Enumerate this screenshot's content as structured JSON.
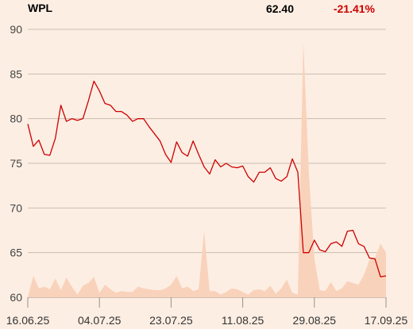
{
  "header": {
    "ticker": "WPL",
    "price": "62.40",
    "change": "-21.41%"
  },
  "colors": {
    "price_line": "#cc0000",
    "volume_fill": "#f9d2bb",
    "grid": "#c9bdb0",
    "background": "#fdeee3"
  },
  "chart_data": {
    "type": "line",
    "title": "",
    "xlabel": "",
    "ylabel": "",
    "ylim": [
      60,
      90
    ],
    "yticks": [
      "90",
      "85",
      "80",
      "75",
      "70",
      "65",
      "60"
    ],
    "ytick_values": [
      90,
      85,
      80,
      75,
      70,
      65,
      60
    ],
    "xticks": [
      "16.06.25",
      "04.07.25",
      "23.07.25",
      "11.08.25",
      "29.08.25",
      "17.09.25"
    ],
    "grid": true,
    "series": [
      {
        "values": [
          79.4,
          76.9,
          77.6,
          76.0,
          75.9,
          77.8,
          81.5,
          79.7,
          80.0,
          79.8,
          80.0,
          82.0,
          84.2,
          83.1,
          81.7,
          81.5,
          80.8,
          80.8,
          80.4,
          79.7,
          80.0,
          80.0,
          79.1,
          78.3,
          77.5,
          76.0,
          75.1,
          77.4,
          76.2,
          75.8,
          77.5,
          76.0,
          74.6,
          73.8,
          75.4,
          74.6,
          75.0,
          74.6,
          74.5,
          74.7,
          73.5,
          72.9,
          74.0,
          74.0,
          74.5,
          73.3,
          73.0,
          73.5,
          75.5,
          74.0,
          65.0,
          65.0,
          66.4,
          65.3,
          65.1,
          66.0,
          66.2,
          65.7,
          67.4,
          67.5,
          66.0,
          65.7,
          64.4,
          64.3,
          62.3,
          62.4
        ]
      },
      {
        "values": [
          60.0,
          62.4,
          61.0,
          61.2,
          60.9,
          62.1,
          60.8,
          62.2,
          61.2,
          60.3,
          61.3,
          61.6,
          62.3,
          60.5,
          61.4,
          60.9,
          60.5,
          60.7,
          60.6,
          60.6,
          61.2,
          61.0,
          60.9,
          60.8,
          60.8,
          61.0,
          61.4,
          62.4,
          61.0,
          61.2,
          60.7,
          60.9,
          67.4,
          60.7,
          60.7,
          60.3,
          60.6,
          61.0,
          60.9,
          60.6,
          60.3,
          60.8,
          60.9,
          60.7,
          61.3,
          60.4,
          61.0,
          62.0,
          60.5,
          60.3,
          88.6,
          74.0,
          64.3,
          60.8,
          60.7,
          61.7,
          60.7,
          61.0,
          61.8,
          61.6,
          61.4,
          62.5,
          64.2,
          64.4,
          66.0,
          65.0
        ]
      }
    ]
  }
}
